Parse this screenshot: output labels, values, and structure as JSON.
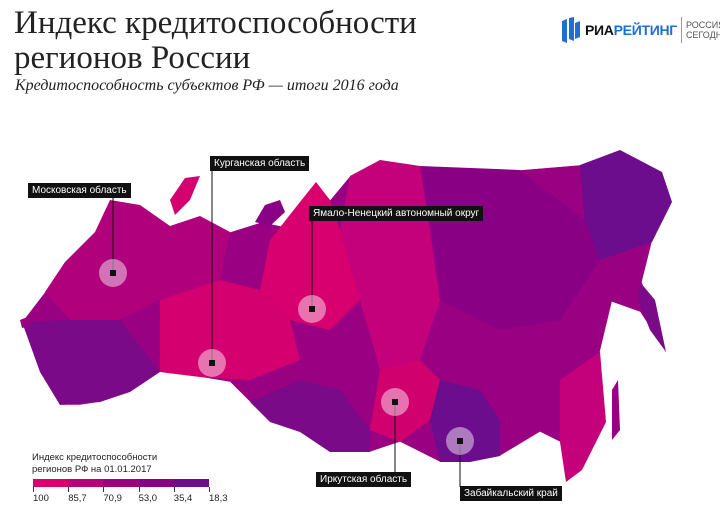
{
  "header": {
    "title_line1": "Индекс кредитоспособности",
    "title_line2": "регионов России",
    "subtitle": "Кредитоспособность субъектов РФ — итоги 2016 года"
  },
  "logo": {
    "ria": "РИА",
    "rating": "РЕЙТИНГ",
    "rs_line1": "РОССИЯ",
    "rs_line2": "СЕГОДНЯ"
  },
  "callouts": [
    "Московская область",
    "Курганская область",
    "Ямало-Ненецкий автономный округ",
    "Иркутская область",
    "Забайкальский край"
  ],
  "legend": {
    "title_line1": "Индекс кредитоспособности",
    "title_line2": "регионов РФ на 01.01.2017",
    "ticks": [
      "100",
      "85,7",
      "70,9",
      "53,0",
      "35,4",
      "18,3"
    ],
    "colors": [
      "#d8006e",
      "#b8007a",
      "#9f0080",
      "#880086",
      "#6b0d8c"
    ]
  }
}
